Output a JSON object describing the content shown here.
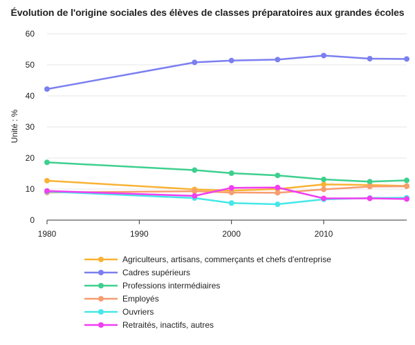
{
  "chart_data": {
    "type": "line",
    "title": "Évolution de l'origine sociales des élèves de classes préparatoires aux grandes écoles",
    "xlabel": "",
    "ylabel": "Unité : %",
    "xlim": [
      1980,
      2019
    ],
    "ylim": [
      0,
      60
    ],
    "x_ticks": [
      1980,
      1990,
      2000,
      2010
    ],
    "y_ticks": [
      0,
      10,
      20,
      30,
      40,
      50,
      60
    ],
    "grid": "horizontal",
    "legend_position": "bottom",
    "x": [
      1980,
      1996,
      2000,
      2005,
      2010,
      2015,
      2019
    ],
    "series": [
      {
        "name": "Agriculteurs, artisans, commerçants et chefs d'entreprise",
        "color": "#f9b234",
        "values": [
          12.7,
          9.9,
          9.5,
          10.0,
          11.5,
          11.3,
          11.0
        ]
      },
      {
        "name": "Cadres supérieurs",
        "color": "#7b7ff0",
        "values": [
          42.2,
          50.8,
          51.4,
          51.7,
          53.0,
          52.0,
          51.9
        ]
      },
      {
        "name": "Professions intermédiaires",
        "color": "#3ecf8e",
        "values": [
          18.6,
          16.1,
          15.1,
          14.4,
          13.1,
          12.4,
          12.8
        ]
      },
      {
        "name": "Employés",
        "color": "#f79d6f",
        "values": [
          8.9,
          9.3,
          8.9,
          8.8,
          9.9,
          10.8,
          10.9
        ]
      },
      {
        "name": "Ouvriers",
        "color": "#45e7e7",
        "values": [
          9.2,
          7.1,
          5.5,
          5.1,
          6.7,
          7.1,
          7.2
        ]
      },
      {
        "name": "Retraités, inactifs, autres",
        "color": "#f03ef0",
        "values": [
          9.4,
          7.8,
          10.4,
          10.5,
          7.0,
          7.0,
          6.8
        ]
      }
    ]
  }
}
